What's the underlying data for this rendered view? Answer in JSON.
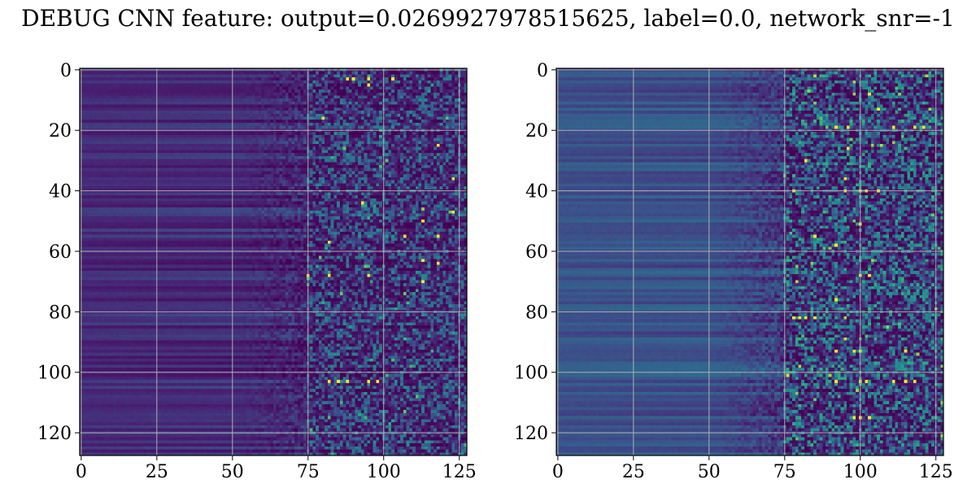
{
  "title": "DEBUG CNN feature: output=0.0269927978515625, label=0.0, network_snr=-1",
  "chart_data": [
    {
      "type": "heatmap",
      "panel": "left",
      "rows": 128,
      "cols": 128,
      "colormap": "viridis",
      "grid": true,
      "xlim": [
        -0.5,
        127.5
      ],
      "ylim": [
        127.5,
        -0.5
      ],
      "xticks": [
        0,
        25,
        50,
        75,
        100,
        125
      ],
      "yticks": [
        0,
        20,
        40,
        60,
        80,
        100,
        120
      ],
      "xtick_labels": [
        "0",
        "25",
        "50",
        "75",
        "100",
        "125"
      ],
      "ytick_labels": [
        "0",
        "20",
        "40",
        "60",
        "80",
        "100",
        "120"
      ],
      "pattern": {
        "smooth_region_cols": [
          0,
          50
        ],
        "smooth_level": 0.14,
        "transition_cols": [
          50,
          75
        ],
        "noisy_region_cols": [
          75,
          127
        ],
        "noise_level": 0.22
      },
      "bright_pixels": [
        [
          3,
          88
        ],
        [
          3,
          90
        ],
        [
          3,
          95
        ],
        [
          3,
          103
        ],
        [
          5,
          95
        ],
        [
          16,
          80
        ],
        [
          25,
          118
        ],
        [
          36,
          123
        ],
        [
          44,
          93
        ],
        [
          47,
          123
        ],
        [
          50,
          113
        ],
        [
          55,
          107
        ],
        [
          55,
          118
        ],
        [
          57,
          82
        ],
        [
          63,
          113
        ],
        [
          64,
          118
        ],
        [
          68,
          75
        ],
        [
          68,
          82
        ],
        [
          68,
          95
        ],
        [
          70,
          113
        ],
        [
          103,
          82
        ],
        [
          103,
          85
        ],
        [
          103,
          88
        ],
        [
          103,
          95
        ],
        [
          103,
          98
        ]
      ]
    },
    {
      "type": "heatmap",
      "panel": "right",
      "rows": 128,
      "cols": 128,
      "colormap": "viridis",
      "grid": true,
      "xlim": [
        -0.5,
        127.5
      ],
      "ylim": [
        127.5,
        -0.5
      ],
      "xticks": [
        0,
        25,
        50,
        75,
        100,
        125
      ],
      "yticks": [
        0,
        20,
        40,
        60,
        80,
        100,
        120
      ],
      "xtick_labels": [
        "0",
        "25",
        "50",
        "75",
        "100",
        "125"
      ],
      "ytick_labels": [
        "0",
        "20",
        "40",
        "60",
        "80",
        "100",
        "120"
      ],
      "pattern": {
        "smooth_region_cols": [
          0,
          50
        ],
        "smooth_level": 0.26,
        "transition_cols": [
          50,
          75
        ],
        "noisy_region_cols": [
          75,
          127
        ],
        "noise_level": 0.3
      },
      "bright_pixels": [
        [
          8,
          103
        ],
        [
          13,
          106
        ],
        [
          19,
          92
        ],
        [
          19,
          96
        ],
        [
          19,
          111
        ],
        [
          19,
          118
        ],
        [
          19,
          121
        ],
        [
          26,
          96
        ],
        [
          30,
          82
        ],
        [
          36,
          95
        ],
        [
          40,
          78
        ],
        [
          40,
          95
        ],
        [
          40,
          100
        ],
        [
          40,
          102
        ],
        [
          40,
          106
        ],
        [
          51,
          100
        ],
        [
          55,
          85
        ],
        [
          58,
          92
        ],
        [
          68,
          100
        ],
        [
          68,
          103
        ],
        [
          76,
          92
        ],
        [
          82,
          78
        ],
        [
          82,
          80
        ],
        [
          82,
          82
        ],
        [
          82,
          85
        ],
        [
          93,
          92
        ],
        [
          93,
          98
        ],
        [
          93,
          100
        ],
        [
          93,
          115
        ],
        [
          103,
          92
        ],
        [
          103,
          100
        ],
        [
          103,
          102
        ],
        [
          103,
          111
        ],
        [
          103,
          115
        ],
        [
          103,
          118
        ],
        [
          115,
          98
        ],
        [
          115,
          100
        ],
        [
          115,
          103
        ]
      ]
    }
  ]
}
